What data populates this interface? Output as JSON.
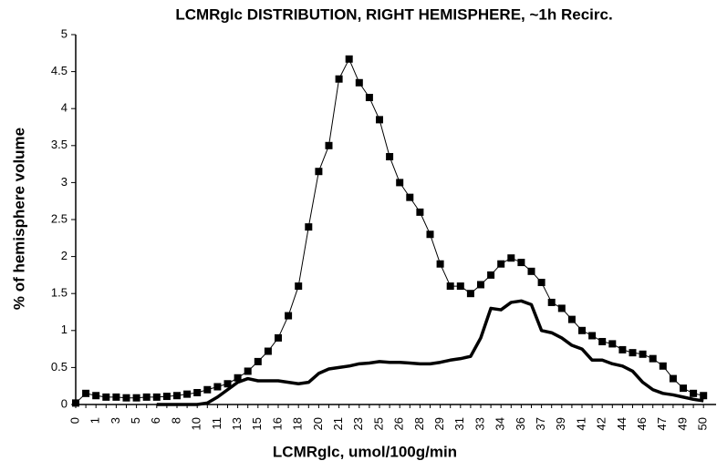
{
  "chart_data": {
    "type": "line",
    "title": "LCMRglc DISTRIBUTION, RIGHT HEMISPHERE, ~1h Recirc.",
    "x_label": "LCMRglc, umol/100g/min",
    "y_label": "% of hemisphere volume",
    "categories": [
      "0",
      null,
      "1",
      null,
      "3",
      null,
      "5",
      null,
      "6",
      null,
      "8",
      null,
      "10",
      null,
      "11",
      null,
      "13",
      null,
      "15",
      null,
      "16",
      null,
      "18",
      null,
      "20",
      null,
      "21",
      null,
      "23",
      null,
      "25",
      null,
      "26",
      null,
      "28",
      null,
      "29",
      null,
      "31",
      null,
      "33",
      null,
      "34",
      null,
      "36",
      null,
      "37",
      null,
      "39",
      null,
      "41",
      null,
      "42",
      null,
      "44",
      null,
      "46",
      null,
      "47",
      null,
      "49",
      null,
      "50"
    ],
    "series": [
      {
        "color": "#000000",
        "marker": "square",
        "values": [
          0.02,
          0.15,
          0.12,
          0.1,
          0.1,
          0.09,
          0.09,
          0.1,
          0.1,
          0.11,
          0.12,
          0.14,
          0.16,
          0.2,
          0.24,
          0.28,
          0.36,
          0.45,
          0.58,
          0.72,
          0.9,
          1.2,
          1.6,
          2.4,
          3.15,
          3.5,
          4.4,
          4.67,
          4.35,
          4.15,
          3.85,
          3.35,
          3.0,
          2.8,
          2.6,
          2.3,
          1.9,
          1.6,
          1.6,
          1.5,
          1.62,
          1.75,
          1.9,
          1.98,
          1.92,
          1.8,
          1.65,
          1.38,
          1.3,
          1.15,
          1.0,
          0.93,
          0.85,
          0.82,
          0.74,
          0.7,
          0.68,
          0.62,
          0.52,
          0.35,
          0.22,
          0.15,
          0.12
        ]
      },
      {
        "color": "#000000",
        "marker": "none",
        "values": [
          null,
          null,
          null,
          null,
          null,
          null,
          null,
          null,
          0,
          0,
          0,
          0,
          0,
          0.02,
          0.1,
          0.2,
          0.3,
          0.35,
          0.32,
          0.32,
          0.32,
          0.3,
          0.28,
          0.3,
          0.42,
          0.48,
          0.5,
          0.52,
          0.55,
          0.56,
          0.58,
          0.57,
          0.57,
          0.56,
          0.55,
          0.55,
          0.57,
          0.6,
          0.62,
          0.65,
          0.9,
          1.3,
          1.28,
          1.38,
          1.4,
          1.35,
          1.0,
          0.97,
          0.9,
          0.8,
          0.75,
          0.6,
          0.6,
          0.55,
          0.52,
          0.45,
          0.3,
          0.2,
          0.15,
          0.13,
          0.1,
          0.07,
          0.05
        ]
      }
    ],
    "ylim": [
      0,
      5
    ],
    "yticks": [
      0,
      0.5,
      1,
      1.5,
      2,
      2.5,
      3,
      3.5,
      4,
      4.5,
      5
    ]
  }
}
